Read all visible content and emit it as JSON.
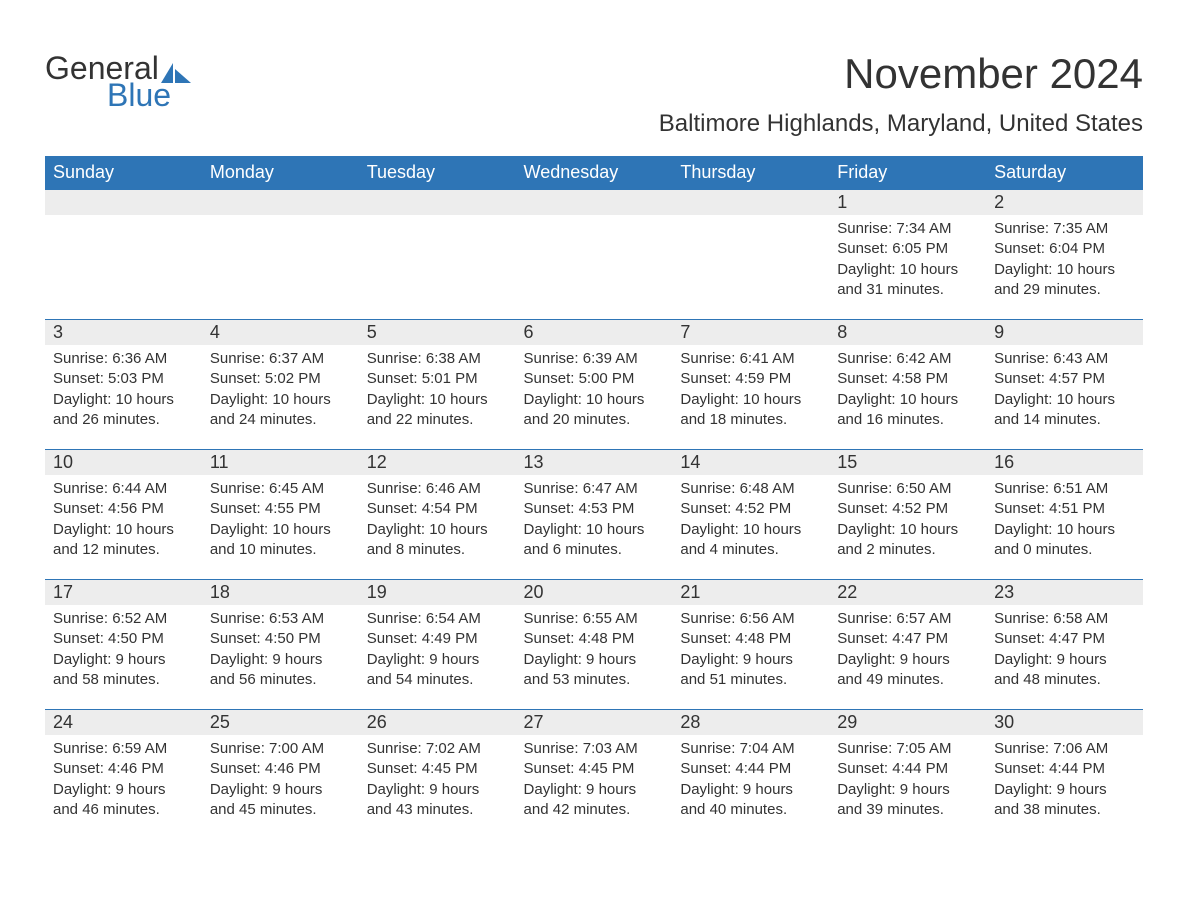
{
  "logo": {
    "text_general": "General",
    "text_blue": "Blue",
    "icon_color": "#2e75b6"
  },
  "title": "November 2024",
  "location": "Baltimore Highlands, Maryland, United States",
  "colors": {
    "header_bg": "#2e75b6",
    "header_text": "#ffffff",
    "day_number_bg": "#ededed",
    "text": "#333333",
    "background": "#ffffff",
    "divider": "#2e75b6"
  },
  "fonts": {
    "title_size": 42,
    "location_size": 24,
    "header_cell_size": 18,
    "day_number_size": 18,
    "content_size": 15
  },
  "weekdays": [
    "Sunday",
    "Monday",
    "Tuesday",
    "Wednesday",
    "Thursday",
    "Friday",
    "Saturday"
  ],
  "weeks": [
    [
      null,
      null,
      null,
      null,
      null,
      {
        "day": "1",
        "sunrise": "Sunrise: 7:34 AM",
        "sunset": "Sunset: 6:05 PM",
        "daylight1": "Daylight: 10 hours",
        "daylight2": "and 31 minutes."
      },
      {
        "day": "2",
        "sunrise": "Sunrise: 7:35 AM",
        "sunset": "Sunset: 6:04 PM",
        "daylight1": "Daylight: 10 hours",
        "daylight2": "and 29 minutes."
      }
    ],
    [
      {
        "day": "3",
        "sunrise": "Sunrise: 6:36 AM",
        "sunset": "Sunset: 5:03 PM",
        "daylight1": "Daylight: 10 hours",
        "daylight2": "and 26 minutes."
      },
      {
        "day": "4",
        "sunrise": "Sunrise: 6:37 AM",
        "sunset": "Sunset: 5:02 PM",
        "daylight1": "Daylight: 10 hours",
        "daylight2": "and 24 minutes."
      },
      {
        "day": "5",
        "sunrise": "Sunrise: 6:38 AM",
        "sunset": "Sunset: 5:01 PM",
        "daylight1": "Daylight: 10 hours",
        "daylight2": "and 22 minutes."
      },
      {
        "day": "6",
        "sunrise": "Sunrise: 6:39 AM",
        "sunset": "Sunset: 5:00 PM",
        "daylight1": "Daylight: 10 hours",
        "daylight2": "and 20 minutes."
      },
      {
        "day": "7",
        "sunrise": "Sunrise: 6:41 AM",
        "sunset": "Sunset: 4:59 PM",
        "daylight1": "Daylight: 10 hours",
        "daylight2": "and 18 minutes."
      },
      {
        "day": "8",
        "sunrise": "Sunrise: 6:42 AM",
        "sunset": "Sunset: 4:58 PM",
        "daylight1": "Daylight: 10 hours",
        "daylight2": "and 16 minutes."
      },
      {
        "day": "9",
        "sunrise": "Sunrise: 6:43 AM",
        "sunset": "Sunset: 4:57 PM",
        "daylight1": "Daylight: 10 hours",
        "daylight2": "and 14 minutes."
      }
    ],
    [
      {
        "day": "10",
        "sunrise": "Sunrise: 6:44 AM",
        "sunset": "Sunset: 4:56 PM",
        "daylight1": "Daylight: 10 hours",
        "daylight2": "and 12 minutes."
      },
      {
        "day": "11",
        "sunrise": "Sunrise: 6:45 AM",
        "sunset": "Sunset: 4:55 PM",
        "daylight1": "Daylight: 10 hours",
        "daylight2": "and 10 minutes."
      },
      {
        "day": "12",
        "sunrise": "Sunrise: 6:46 AM",
        "sunset": "Sunset: 4:54 PM",
        "daylight1": "Daylight: 10 hours",
        "daylight2": "and 8 minutes."
      },
      {
        "day": "13",
        "sunrise": "Sunrise: 6:47 AM",
        "sunset": "Sunset: 4:53 PM",
        "daylight1": "Daylight: 10 hours",
        "daylight2": "and 6 minutes."
      },
      {
        "day": "14",
        "sunrise": "Sunrise: 6:48 AM",
        "sunset": "Sunset: 4:52 PM",
        "daylight1": "Daylight: 10 hours",
        "daylight2": "and 4 minutes."
      },
      {
        "day": "15",
        "sunrise": "Sunrise: 6:50 AM",
        "sunset": "Sunset: 4:52 PM",
        "daylight1": "Daylight: 10 hours",
        "daylight2": "and 2 minutes."
      },
      {
        "day": "16",
        "sunrise": "Sunrise: 6:51 AM",
        "sunset": "Sunset: 4:51 PM",
        "daylight1": "Daylight: 10 hours",
        "daylight2": "and 0 minutes."
      }
    ],
    [
      {
        "day": "17",
        "sunrise": "Sunrise: 6:52 AM",
        "sunset": "Sunset: 4:50 PM",
        "daylight1": "Daylight: 9 hours",
        "daylight2": "and 58 minutes."
      },
      {
        "day": "18",
        "sunrise": "Sunrise: 6:53 AM",
        "sunset": "Sunset: 4:50 PM",
        "daylight1": "Daylight: 9 hours",
        "daylight2": "and 56 minutes."
      },
      {
        "day": "19",
        "sunrise": "Sunrise: 6:54 AM",
        "sunset": "Sunset: 4:49 PM",
        "daylight1": "Daylight: 9 hours",
        "daylight2": "and 54 minutes."
      },
      {
        "day": "20",
        "sunrise": "Sunrise: 6:55 AM",
        "sunset": "Sunset: 4:48 PM",
        "daylight1": "Daylight: 9 hours",
        "daylight2": "and 53 minutes."
      },
      {
        "day": "21",
        "sunrise": "Sunrise: 6:56 AM",
        "sunset": "Sunset: 4:48 PM",
        "daylight1": "Daylight: 9 hours",
        "daylight2": "and 51 minutes."
      },
      {
        "day": "22",
        "sunrise": "Sunrise: 6:57 AM",
        "sunset": "Sunset: 4:47 PM",
        "daylight1": "Daylight: 9 hours",
        "daylight2": "and 49 minutes."
      },
      {
        "day": "23",
        "sunrise": "Sunrise: 6:58 AM",
        "sunset": "Sunset: 4:47 PM",
        "daylight1": "Daylight: 9 hours",
        "daylight2": "and 48 minutes."
      }
    ],
    [
      {
        "day": "24",
        "sunrise": "Sunrise: 6:59 AM",
        "sunset": "Sunset: 4:46 PM",
        "daylight1": "Daylight: 9 hours",
        "daylight2": "and 46 minutes."
      },
      {
        "day": "25",
        "sunrise": "Sunrise: 7:00 AM",
        "sunset": "Sunset: 4:46 PM",
        "daylight1": "Daylight: 9 hours",
        "daylight2": "and 45 minutes."
      },
      {
        "day": "26",
        "sunrise": "Sunrise: 7:02 AM",
        "sunset": "Sunset: 4:45 PM",
        "daylight1": "Daylight: 9 hours",
        "daylight2": "and 43 minutes."
      },
      {
        "day": "27",
        "sunrise": "Sunrise: 7:03 AM",
        "sunset": "Sunset: 4:45 PM",
        "daylight1": "Daylight: 9 hours",
        "daylight2": "and 42 minutes."
      },
      {
        "day": "28",
        "sunrise": "Sunrise: 7:04 AM",
        "sunset": "Sunset: 4:44 PM",
        "daylight1": "Daylight: 9 hours",
        "daylight2": "and 40 minutes."
      },
      {
        "day": "29",
        "sunrise": "Sunrise: 7:05 AM",
        "sunset": "Sunset: 4:44 PM",
        "daylight1": "Daylight: 9 hours",
        "daylight2": "and 39 minutes."
      },
      {
        "day": "30",
        "sunrise": "Sunrise: 7:06 AM",
        "sunset": "Sunset: 4:44 PM",
        "daylight1": "Daylight: 9 hours",
        "daylight2": "and 38 minutes."
      }
    ]
  ]
}
